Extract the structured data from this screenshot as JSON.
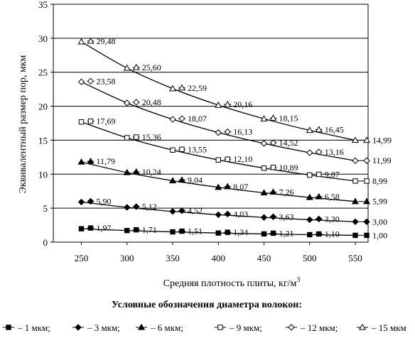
{
  "chart_data": {
    "type": "line",
    "xlabel": "Средняя плотность плиты, кг/м",
    "xlabel_sup": "3",
    "ylabel": "Эквивалентный размер пор, мкм",
    "xlim": [
      250,
      550
    ],
    "ylim": [
      0,
      35
    ],
    "x_ticks": [
      "250",
      "300",
      "350",
      "400",
      "450",
      "500",
      "550"
    ],
    "y_ticks": [
      "0",
      "5",
      "10",
      "15",
      "20",
      "25",
      "30",
      "35"
    ],
    "grid": true,
    "legend_title": "Условные обозначения диаметра волокон:",
    "legend_placement": "bottom",
    "series": [
      {
        "name": "1 мкм",
        "marker": "square-filled",
        "x": [
          250,
          300,
          350,
          400,
          450,
          500,
          550
        ],
        "y": [
          1.97,
          1.71,
          1.51,
          1.34,
          1.21,
          1.1,
          1.0
        ],
        "labels": [
          "1,97",
          "1,71",
          "1,51",
          "1,34",
          "1,21",
          "1,10",
          "1,00"
        ]
      },
      {
        "name": "3 мкм",
        "marker": "diamond-filled",
        "x": [
          250,
          300,
          350,
          400,
          450,
          500,
          550
        ],
        "y": [
          5.9,
          5.12,
          4.52,
          4.03,
          3.63,
          3.3,
          3.0
        ],
        "labels": [
          "5,90",
          "5,12",
          "4,52",
          "4,03",
          "3,63",
          "3,30",
          "3,00"
        ]
      },
      {
        "name": "6 мкм",
        "marker": "triangle-filled",
        "x": [
          250,
          300,
          350,
          400,
          450,
          500,
          550
        ],
        "y": [
          11.79,
          10.24,
          9.04,
          8.07,
          7.26,
          6.58,
          5.99
        ],
        "labels": [
          "11,79",
          "10,24",
          "9,04",
          "8,07",
          "7,26",
          "6,58",
          "5,99"
        ]
      },
      {
        "name": "9 мкм",
        "marker": "square-open",
        "x": [
          250,
          300,
          350,
          400,
          450,
          500,
          550
        ],
        "y": [
          17.69,
          15.36,
          13.55,
          12.1,
          10.89,
          9.87,
          8.99
        ],
        "labels": [
          "17,69",
          "15,36",
          "13,55",
          "12,10",
          "10,89",
          "9,87",
          "8,99"
        ]
      },
      {
        "name": "12 мкм",
        "marker": "diamond-open",
        "x": [
          250,
          300,
          350,
          400,
          450,
          500,
          550
        ],
        "y": [
          23.58,
          20.48,
          18.07,
          16.13,
          14.52,
          13.16,
          11.99
        ],
        "labels": [
          "23,58",
          "20,48",
          "18,07",
          "16,13",
          "14,52",
          "13,16",
          "11,99"
        ]
      },
      {
        "name": "15 мкм",
        "marker": "triangle-open",
        "x": [
          250,
          300,
          350,
          400,
          450,
          500,
          550
        ],
        "y": [
          29.48,
          25.6,
          22.59,
          20.16,
          18.15,
          16.45,
          14.99
        ],
        "labels": [
          "29,48",
          "25,60",
          "22,59",
          "20,16",
          "18,15",
          "16,45",
          "14,99"
        ]
      }
    ],
    "legend_entries": [
      "– 1 мкм;",
      "– 3 мкм;",
      "– 6 мкм;",
      "– 9 мкм;",
      "– 12 мкм;",
      "– 15 мкм"
    ]
  }
}
